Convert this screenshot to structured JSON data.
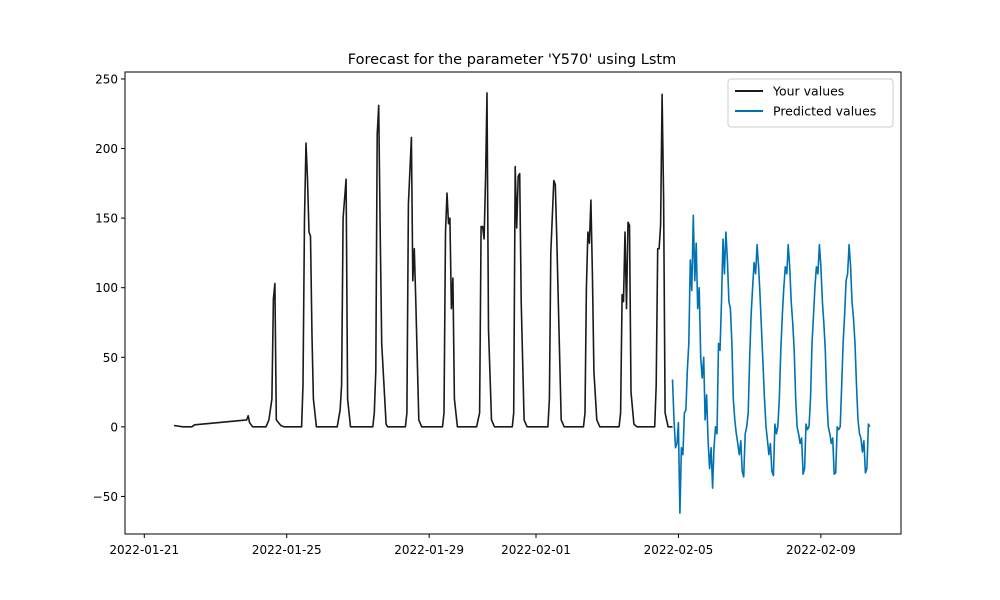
{
  "chart_data": {
    "type": "line",
    "title": "Forecast for the parameter 'Y570' using Lstm",
    "xlabel": "",
    "ylabel": "",
    "xlim": [
      "2022-01-20T11:00",
      "2022-02-11T06:00"
    ],
    "ylim": [
      -77,
      255
    ],
    "x_ticks": [
      "2022-01-21",
      "2022-01-25",
      "2022-01-29",
      "2022-02-01",
      "2022-02-05",
      "2022-02-09"
    ],
    "y_ticks": [
      -50,
      0,
      50,
      100,
      150,
      200,
      250
    ],
    "y_tick_labels": [
      "−50",
      "0",
      "50",
      "100",
      "150",
      "200",
      "250"
    ],
    "grid": false,
    "legend_position": "top-right",
    "series": [
      {
        "name": "Your values",
        "color": "#1a1a1a",
        "points": [
          [
            "2022-01-21T20:00",
            1
          ],
          [
            "2022-01-22T02:00",
            0
          ],
          [
            "2022-01-22T08:00",
            0
          ],
          [
            "2022-01-22T10:00",
            1.5
          ],
          [
            "2022-01-23T21:00",
            5
          ],
          [
            "2022-01-23T22:00",
            8
          ],
          [
            "2022-01-23T23:00",
            3
          ],
          [
            "2022-01-24T01:00",
            0
          ],
          [
            "2022-01-24T10:00",
            0
          ],
          [
            "2022-01-24T12:00",
            5
          ],
          [
            "2022-01-24T14:00",
            20
          ],
          [
            "2022-01-24T15:00",
            92
          ],
          [
            "2022-01-24T16:00",
            103
          ],
          [
            "2022-01-24T17:00",
            5
          ],
          [
            "2022-01-24T20:00",
            1
          ],
          [
            "2022-01-24T22:00",
            0
          ],
          [
            "2022-01-25T10:00",
            0
          ],
          [
            "2022-01-25T11:00",
            30
          ],
          [
            "2022-01-25T12:00",
            150
          ],
          [
            "2022-01-25T13:00",
            204
          ],
          [
            "2022-01-25T14:00",
            178
          ],
          [
            "2022-01-25T15:00",
            140
          ],
          [
            "2022-01-25T16:00",
            137
          ],
          [
            "2022-01-25T17:00",
            65
          ],
          [
            "2022-01-25T18:00",
            20
          ],
          [
            "2022-01-25T20:00",
            0
          ],
          [
            "2022-01-26T10:00",
            0
          ],
          [
            "2022-01-26T12:00",
            12
          ],
          [
            "2022-01-26T13:00",
            30
          ],
          [
            "2022-01-26T14:00",
            150
          ],
          [
            "2022-01-26T16:00",
            178
          ],
          [
            "2022-01-26T17:00",
            20
          ],
          [
            "2022-01-26T19:00",
            0
          ],
          [
            "2022-01-27T10:00",
            0
          ],
          [
            "2022-01-27T11:00",
            10
          ],
          [
            "2022-01-27T12:00",
            40
          ],
          [
            "2022-01-27T13:00",
            210
          ],
          [
            "2022-01-27T14:00",
            231
          ],
          [
            "2022-01-27T15:00",
            140
          ],
          [
            "2022-01-27T16:00",
            60
          ],
          [
            "2022-01-27T19:00",
            2
          ],
          [
            "2022-01-27T20:00",
            0
          ],
          [
            "2022-01-28T08:00",
            0
          ],
          [
            "2022-01-28T09:00",
            10
          ],
          [
            "2022-01-28T10:00",
            160
          ],
          [
            "2022-01-28T12:00",
            208
          ],
          [
            "2022-01-28T13:00",
            105
          ],
          [
            "2022-01-28T14:00",
            128
          ],
          [
            "2022-01-28T15:00",
            90
          ],
          [
            "2022-01-28T17:00",
            5
          ],
          [
            "2022-01-28T19:00",
            0
          ],
          [
            "2022-01-29T09:00",
            0
          ],
          [
            "2022-01-29T10:00",
            10
          ],
          [
            "2022-01-29T11:00",
            140
          ],
          [
            "2022-01-29T12:00",
            168
          ],
          [
            "2022-01-29T13:00",
            146
          ],
          [
            "2022-01-29T14:00",
            150
          ],
          [
            "2022-01-29T15:00",
            85
          ],
          [
            "2022-01-29T16:00",
            107
          ],
          [
            "2022-01-29T17:00",
            20
          ],
          [
            "2022-01-29T19:00",
            0
          ],
          [
            "2022-01-30T08:00",
            0
          ],
          [
            "2022-01-30T10:00",
            10
          ],
          [
            "2022-01-30T11:00",
            144
          ],
          [
            "2022-01-30T12:00",
            144
          ],
          [
            "2022-01-30T13:00",
            135
          ],
          [
            "2022-01-30T14:00",
            180
          ],
          [
            "2022-01-30T15:00",
            240
          ],
          [
            "2022-01-30T16:00",
            70
          ],
          [
            "2022-01-30T18:00",
            5
          ],
          [
            "2022-01-30T20:00",
            0
          ],
          [
            "2022-01-31T08:00",
            0
          ],
          [
            "2022-01-31T09:00",
            10
          ],
          [
            "2022-01-31T10:00",
            187
          ],
          [
            "2022-01-31T11:00",
            143
          ],
          [
            "2022-01-31T12:00",
            180
          ],
          [
            "2022-01-31T13:00",
            182
          ],
          [
            "2022-01-31T14:00",
            90
          ],
          [
            "2022-01-31T16:00",
            5
          ],
          [
            "2022-01-31T18:00",
            0
          ],
          [
            "2022-02-01T08:00",
            0
          ],
          [
            "2022-02-01T09:00",
            20
          ],
          [
            "2022-02-01T10:00",
            125
          ],
          [
            "2022-02-01T12:00",
            177
          ],
          [
            "2022-02-01T13:00",
            174
          ],
          [
            "2022-02-01T14:00",
            135
          ],
          [
            "2022-02-01T15:00",
            90
          ],
          [
            "2022-02-01T17:00",
            5
          ],
          [
            "2022-02-01T19:00",
            0
          ],
          [
            "2022-02-02T08:00",
            0
          ],
          [
            "2022-02-02T09:00",
            10
          ],
          [
            "2022-02-02T10:00",
            100
          ],
          [
            "2022-02-02T11:00",
            140
          ],
          [
            "2022-02-02T12:00",
            132
          ],
          [
            "2022-02-02T13:00",
            163
          ],
          [
            "2022-02-02T14:00",
            110
          ],
          [
            "2022-02-02T15:00",
            40
          ],
          [
            "2022-02-02T17:00",
            5
          ],
          [
            "2022-02-02T19:00",
            0
          ],
          [
            "2022-02-03T08:00",
            0
          ],
          [
            "2022-02-03T09:00",
            10
          ],
          [
            "2022-02-03T10:00",
            95
          ],
          [
            "2022-02-03T11:00",
            90
          ],
          [
            "2022-02-03T12:00",
            140
          ],
          [
            "2022-02-03T13:00",
            85
          ],
          [
            "2022-02-03T14:00",
            147
          ],
          [
            "2022-02-03T15:00",
            145
          ],
          [
            "2022-02-03T16:00",
            25
          ],
          [
            "2022-02-03T18:00",
            2
          ],
          [
            "2022-02-03T20:00",
            0
          ],
          [
            "2022-02-04T08:00",
            0
          ],
          [
            "2022-02-04T09:00",
            30
          ],
          [
            "2022-02-04T10:00",
            128
          ],
          [
            "2022-02-04T11:00",
            128
          ],
          [
            "2022-02-04T12:00",
            145
          ],
          [
            "2022-02-04T13:00",
            239
          ],
          [
            "2022-02-04T14:00",
            165
          ],
          [
            "2022-02-04T15:00",
            10
          ],
          [
            "2022-02-04T17:00",
            0
          ],
          [
            "2022-02-04T20:00",
            0
          ]
        ]
      },
      {
        "name": "Predicted values",
        "color": "#0072b2",
        "points": [
          [
            "2022-02-04T20:00",
            34
          ],
          [
            "2022-02-04T21:00",
            5
          ],
          [
            "2022-02-04T22:00",
            -15
          ],
          [
            "2022-02-04T23:00",
            -12
          ],
          [
            "2022-02-05T00:00",
            3
          ],
          [
            "2022-02-05T01:00",
            -62
          ],
          [
            "2022-02-05T02:00",
            -15
          ],
          [
            "2022-02-05T03:00",
            -20
          ],
          [
            "2022-02-05T04:00",
            10
          ],
          [
            "2022-02-05T05:00",
            12
          ],
          [
            "2022-02-05T06:00",
            40
          ],
          [
            "2022-02-05T07:00",
            60
          ],
          [
            "2022-02-05T08:00",
            120
          ],
          [
            "2022-02-05T09:00",
            98
          ],
          [
            "2022-02-05T10:00",
            152
          ],
          [
            "2022-02-05T11:00",
            105
          ],
          [
            "2022-02-05T12:00",
            132
          ],
          [
            "2022-02-05T13:00",
            85
          ],
          [
            "2022-02-05T14:00",
            100
          ],
          [
            "2022-02-05T15:00",
            50
          ],
          [
            "2022-02-05T16:00",
            35
          ],
          [
            "2022-02-05T17:00",
            50
          ],
          [
            "2022-02-05T18:00",
            5
          ],
          [
            "2022-02-05T19:00",
            23
          ],
          [
            "2022-02-05T20:00",
            -10
          ],
          [
            "2022-02-05T21:00",
            -30
          ],
          [
            "2022-02-05T22:00",
            -15
          ],
          [
            "2022-02-05T23:00",
            -44
          ],
          [
            "2022-02-06T00:00",
            -15
          ],
          [
            "2022-02-06T01:00",
            0
          ],
          [
            "2022-02-06T02:00",
            -5
          ],
          [
            "2022-02-06T03:00",
            60
          ],
          [
            "2022-02-06T04:00",
            55
          ],
          [
            "2022-02-06T05:00",
            90
          ],
          [
            "2022-02-06T06:00",
            135
          ],
          [
            "2022-02-06T07:00",
            110
          ],
          [
            "2022-02-06T08:00",
            140
          ],
          [
            "2022-02-06T09:00",
            120
          ],
          [
            "2022-02-06T10:00",
            90
          ],
          [
            "2022-02-06T11:00",
            85
          ],
          [
            "2022-02-06T12:00",
            60
          ],
          [
            "2022-02-06T13:00",
            20
          ],
          [
            "2022-02-06T14:00",
            5
          ],
          [
            "2022-02-06T15:00",
            -5
          ],
          [
            "2022-02-06T16:00",
            -12
          ],
          [
            "2022-02-06T17:00",
            -20
          ],
          [
            "2022-02-06T18:00",
            -10
          ],
          [
            "2022-02-06T19:00",
            -32
          ],
          [
            "2022-02-06T20:00",
            -36
          ],
          [
            "2022-02-06T21:00",
            -5
          ],
          [
            "2022-02-06T22:00",
            0
          ],
          [
            "2022-02-06T23:00",
            10
          ],
          [
            "2022-02-07T00:00",
            50
          ],
          [
            "2022-02-07T01:00",
            80
          ],
          [
            "2022-02-07T02:00",
            100
          ],
          [
            "2022-02-07T03:00",
            118
          ],
          [
            "2022-02-07T04:00",
            110
          ],
          [
            "2022-02-07T05:00",
            131
          ],
          [
            "2022-02-07T06:00",
            115
          ],
          [
            "2022-02-07T07:00",
            95
          ],
          [
            "2022-02-07T08:00",
            70
          ],
          [
            "2022-02-07T09:00",
            45
          ],
          [
            "2022-02-07T10:00",
            20
          ],
          [
            "2022-02-07T11:00",
            0
          ],
          [
            "2022-02-07T12:00",
            -10
          ],
          [
            "2022-02-07T13:00",
            -20
          ],
          [
            "2022-02-07T14:00",
            -12
          ],
          [
            "2022-02-07T15:00",
            -32
          ],
          [
            "2022-02-07T16:00",
            -35
          ],
          [
            "2022-02-07T17:00",
            2
          ],
          [
            "2022-02-07T18:00",
            -5
          ],
          [
            "2022-02-07T19:00",
            0
          ],
          [
            "2022-02-07T20:00",
            20
          ],
          [
            "2022-02-07T21:00",
            55
          ],
          [
            "2022-02-07T22:00",
            80
          ],
          [
            "2022-02-07T23:00",
            100
          ],
          [
            "2022-02-08T00:00",
            115
          ],
          [
            "2022-02-08T01:00",
            110
          ],
          [
            "2022-02-08T02:00",
            131
          ],
          [
            "2022-02-08T03:00",
            115
          ],
          [
            "2022-02-08T04:00",
            90
          ],
          [
            "2022-02-08T05:00",
            75
          ],
          [
            "2022-02-08T06:00",
            55
          ],
          [
            "2022-02-08T07:00",
            20
          ],
          [
            "2022-02-08T08:00",
            0
          ],
          [
            "2022-02-08T09:00",
            -5
          ],
          [
            "2022-02-08T10:00",
            -12
          ],
          [
            "2022-02-08T11:00",
            -8
          ],
          [
            "2022-02-08T12:00",
            -34
          ],
          [
            "2022-02-08T13:00",
            -30
          ],
          [
            "2022-02-08T14:00",
            2
          ],
          [
            "2022-02-08T15:00",
            -2
          ],
          [
            "2022-02-08T16:00",
            0
          ],
          [
            "2022-02-08T17:00",
            20
          ],
          [
            "2022-02-08T18:00",
            60
          ],
          [
            "2022-02-08T19:00",
            80
          ],
          [
            "2022-02-08T20:00",
            100
          ],
          [
            "2022-02-08T21:00",
            115
          ],
          [
            "2022-02-08T22:00",
            110
          ],
          [
            "2022-02-08T23:00",
            131
          ],
          [
            "2022-02-09T00:00",
            115
          ],
          [
            "2022-02-09T01:00",
            90
          ],
          [
            "2022-02-09T02:00",
            75
          ],
          [
            "2022-02-09T03:00",
            55
          ],
          [
            "2022-02-09T04:00",
            20
          ],
          [
            "2022-02-09T05:00",
            0
          ],
          [
            "2022-02-09T06:00",
            -5
          ],
          [
            "2022-02-09T07:00",
            -12
          ],
          [
            "2022-02-09T08:00",
            -8
          ],
          [
            "2022-02-09T09:00",
            -34
          ],
          [
            "2022-02-09T10:00",
            -33
          ],
          [
            "2022-02-09T11:00",
            0
          ],
          [
            "2022-02-09T12:00",
            -2
          ],
          [
            "2022-02-09T13:00",
            0
          ],
          [
            "2022-02-09T14:00",
            30
          ],
          [
            "2022-02-09T15:00",
            60
          ],
          [
            "2022-02-09T16:00",
            80
          ],
          [
            "2022-02-09T17:00",
            105
          ],
          [
            "2022-02-09T18:00",
            110
          ],
          [
            "2022-02-09T19:00",
            131
          ],
          [
            "2022-02-09T20:00",
            115
          ],
          [
            "2022-02-09T21:00",
            90
          ],
          [
            "2022-02-09T22:00",
            78
          ],
          [
            "2022-02-09T23:00",
            60
          ],
          [
            "2022-02-10T00:00",
            30
          ],
          [
            "2022-02-10T01:00",
            5
          ],
          [
            "2022-02-10T02:00",
            -5
          ],
          [
            "2022-02-10T03:00",
            -8
          ],
          [
            "2022-02-10T04:00",
            -18
          ],
          [
            "2022-02-10T05:00",
            -10
          ],
          [
            "2022-02-10T06:00",
            -33
          ],
          [
            "2022-02-10T07:00",
            -30
          ],
          [
            "2022-02-10T08:00",
            2
          ],
          [
            "2022-02-10T09:00",
            0
          ]
        ]
      }
    ]
  }
}
